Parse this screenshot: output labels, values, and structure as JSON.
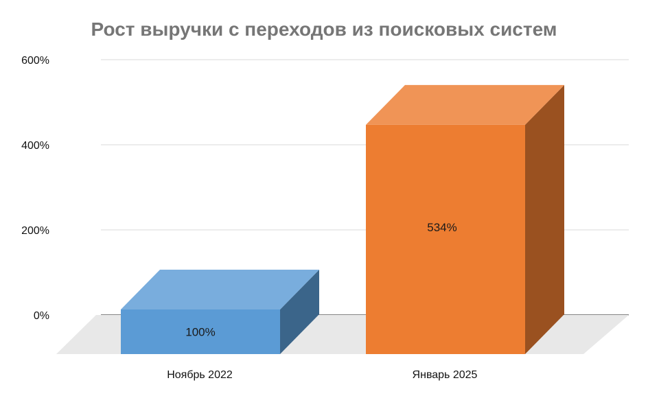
{
  "chart_data": {
    "type": "bar",
    "title": "Рост выручки с переходов из поисковых систем",
    "categories": [
      "Ноябрь 2022",
      "Январь 2025"
    ],
    "values": [
      100,
      534
    ],
    "data_labels": [
      "100%",
      "534%"
    ],
    "y_tick_labels": [
      "0%",
      "200%",
      "400%",
      "600%"
    ],
    "y_ticks": [
      0,
      200,
      400,
      600
    ],
    "ylim": [
      0,
      600
    ],
    "colors": [
      "#5b9bd5",
      "#ed7d31"
    ],
    "legend": "none",
    "grid": true,
    "style": "3d"
  }
}
